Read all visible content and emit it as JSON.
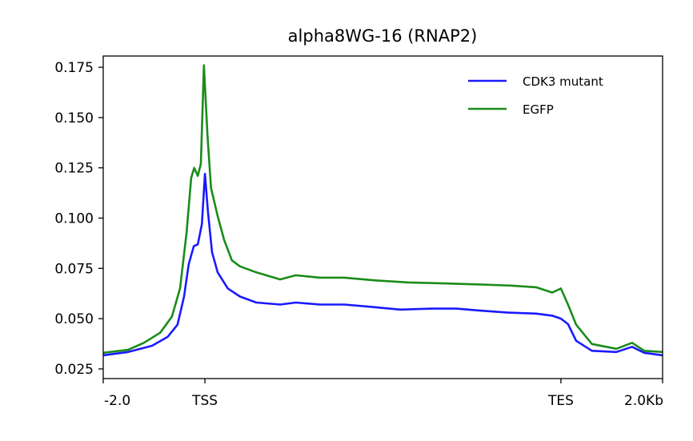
{
  "chart_data": {
    "type": "line",
    "title": "alpha8WG-16 (RNAP2)",
    "xlabel": "",
    "ylabel": "",
    "xlim": [
      0,
      110
    ],
    "ylim": [
      0.0202,
      0.1806
    ],
    "grid": false,
    "legend_position": "top-right",
    "x_ticks": [
      {
        "value": 0,
        "label": "-2.0"
      },
      {
        "value": 20,
        "label": "TSS"
      },
      {
        "value": 90,
        "label": "TES"
      },
      {
        "value": 110,
        "label": "2.0Kb"
      }
    ],
    "y_ticks": [
      {
        "value": 0.025,
        "label": "0.025"
      },
      {
        "value": 0.05,
        "label": "0.050"
      },
      {
        "value": 0.075,
        "label": "0.075"
      },
      {
        "value": 0.1,
        "label": "0.100"
      },
      {
        "value": 0.125,
        "label": "0.125"
      },
      {
        "value": 0.15,
        "label": "0.150"
      },
      {
        "value": 0.175,
        "label": "0.175"
      }
    ],
    "series": [
      {
        "name": "CDK3 mutant",
        "color": "#1a1aff",
        "x": [
          0,
          4.9,
          9.6,
          12.7,
          14.6,
          15.9,
          16.8,
          17.8,
          18.6,
          19.4,
          20,
          20.6,
          21.4,
          22.5,
          24.5,
          26.9,
          30.1,
          34.8,
          37.9,
          42.6,
          47.4,
          52.1,
          58.4,
          64.7,
          69.4,
          74.1,
          79.6,
          85.1,
          88.3,
          90,
          91.4,
          93,
          96.1,
          100.9,
          104,
          106.4,
          110
        ],
        "y": [
          0.0318,
          0.0334,
          0.0365,
          0.041,
          0.047,
          0.061,
          0.077,
          0.086,
          0.087,
          0.097,
          0.122,
          0.103,
          0.083,
          0.073,
          0.065,
          0.061,
          0.058,
          0.057,
          0.058,
          0.057,
          0.057,
          0.056,
          0.0545,
          0.055,
          0.055,
          0.054,
          0.053,
          0.0525,
          0.0515,
          0.05,
          0.0473,
          0.039,
          0.034,
          0.0334,
          0.036,
          0.033,
          0.0318
        ]
      },
      {
        "name": "EGFP",
        "color": "#1a8c1a",
        "x": [
          0,
          4.9,
          8,
          11.2,
          13.5,
          15.1,
          16.4,
          17.3,
          17.9,
          18.6,
          19.2,
          19.8,
          20.5,
          21.2,
          22.5,
          23.8,
          25.3,
          26.9,
          30.1,
          34.8,
          37.9,
          42.6,
          47.4,
          53.7,
          60,
          66.3,
          74.1,
          80.4,
          85.1,
          88.3,
          90,
          91.4,
          93,
          96.1,
          100.9,
          104,
          106.4,
          110
        ],
        "y": [
          0.033,
          0.0345,
          0.038,
          0.043,
          0.051,
          0.065,
          0.093,
          0.12,
          0.125,
          0.121,
          0.127,
          0.176,
          0.141,
          0.115,
          0.101,
          0.089,
          0.079,
          0.076,
          0.073,
          0.0695,
          0.0716,
          0.0704,
          0.0704,
          0.069,
          0.068,
          0.0676,
          0.067,
          0.0664,
          0.0656,
          0.063,
          0.065,
          0.057,
          0.047,
          0.0374,
          0.035,
          0.038,
          0.034,
          0.0334
        ]
      }
    ]
  }
}
